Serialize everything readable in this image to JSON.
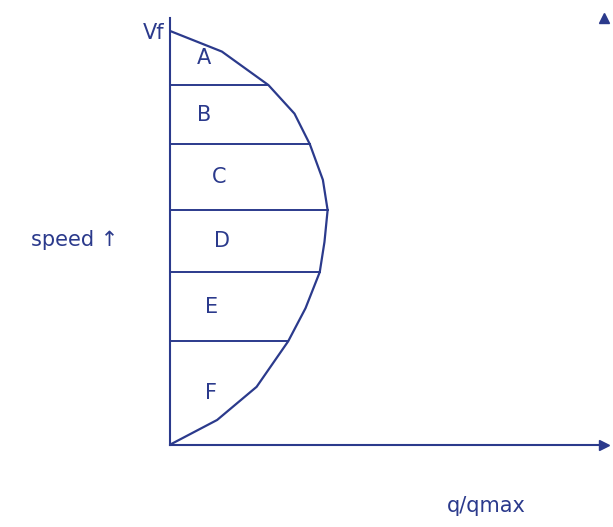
{
  "chart_data": {
    "type": "line",
    "x_label": "q/qmax",
    "y_label": "speed ↑",
    "x": [
      0,
      0.33,
      0.625,
      0.79,
      0.8875,
      0.97,
      1.0,
      0.98,
      0.95,
      0.86,
      0.75,
      0.55,
      0.3,
      0
    ],
    "values": [
      1,
      0.95,
      0.869,
      0.8,
      0.726,
      0.64,
      0.567,
      0.49,
      0.417,
      0.33,
      0.25,
      0.14,
      0.06,
      0
    ],
    "color": "#2b3a8c",
    "xlim": [
      0,
      2.75
    ],
    "ylim": [
      0,
      1.03
    ],
    "xticks": [],
    "yticks": [
      {
        "value": 1,
        "label": "Vf"
      }
    ],
    "tick_labels": "y",
    "regions": [
      "A",
      "B",
      "C",
      "D",
      "E",
      "F"
    ],
    "boundaries": [
      {
        "speed": 0.869,
        "q": 0.625
      },
      {
        "speed": 0.726,
        "q": 0.8875
      },
      {
        "speed": 0.567,
        "q": 1.0
      },
      {
        "speed": 0.417,
        "q": 0.95
      },
      {
        "speed": 0.25,
        "q": 0.75
      }
    ]
  }
}
